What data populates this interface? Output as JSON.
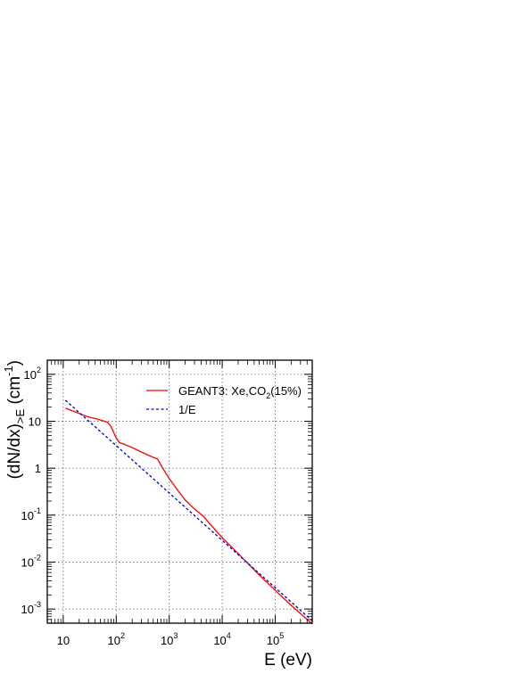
{
  "chart_data": {
    "type": "line",
    "x_scale": "log",
    "y_scale": "log",
    "xlim": [
      5,
      500000
    ],
    "ylim": [
      0.0005,
      200
    ],
    "grid": true,
    "legend_position": "top-right",
    "xlabel": "E (eV)",
    "ylabel": {
      "main": "(dN/dx)",
      "subscript": ">E",
      "unit_prefix": " (cm",
      "unit_exp": "-1",
      "unit_suffix": ")"
    },
    "x_ticks": [
      {
        "value": 10,
        "base": "10",
        "exp": ""
      },
      {
        "value": 100,
        "base": "10",
        "exp": "2"
      },
      {
        "value": 1000,
        "base": "10",
        "exp": "3"
      },
      {
        "value": 10000,
        "base": "10",
        "exp": "4"
      },
      {
        "value": 100000,
        "base": "10",
        "exp": "5"
      }
    ],
    "y_ticks": [
      {
        "value": 100,
        "base": "10",
        "exp": "2"
      },
      {
        "value": 10,
        "base": "10",
        "exp": ""
      },
      {
        "value": 1,
        "base": "1",
        "exp": ""
      },
      {
        "value": 0.1,
        "base": "10",
        "exp": "-1"
      },
      {
        "value": 0.01,
        "base": "10",
        "exp": "-2"
      },
      {
        "value": 0.001,
        "base": "10",
        "exp": "-3"
      }
    ],
    "series": [
      {
        "name": "GEANT3: Xe,CO2(15%)",
        "legend": {
          "main": "GEANT3: Xe,CO",
          "sub": "2",
          "suffix": "(15%)"
        },
        "color": "#ff0000",
        "dash": "solid",
        "x": [
          11,
          16,
          22,
          30,
          42,
          55,
          68,
          78,
          88,
          100,
          115,
          140,
          200,
          300,
          400,
          500,
          600,
          650,
          700,
          800,
          1000,
          1500,
          2000,
          3000,
          4500,
          5000,
          7000,
          10000,
          20000,
          50000,
          100000,
          200000,
          500000
        ],
        "y": [
          19,
          16.2,
          14,
          12.3,
          11.3,
          10.3,
          9.6,
          8.0,
          6.0,
          4.4,
          3.5,
          3.25,
          2.75,
          2.2,
          1.9,
          1.7,
          1.57,
          1.35,
          1.15,
          0.9,
          0.6,
          0.32,
          0.21,
          0.135,
          0.093,
          0.08,
          0.052,
          0.033,
          0.0152,
          0.0053,
          0.0025,
          0.0012,
          0.00048
        ]
      },
      {
        "name": "1/E",
        "legend": {
          "main": "1/E",
          "sub": "",
          "suffix": ""
        },
        "color": "#0000cc",
        "dash": "dashed",
        "x": [
          11,
          500000
        ],
        "y": [
          28,
          0.000562
        ]
      }
    ]
  }
}
